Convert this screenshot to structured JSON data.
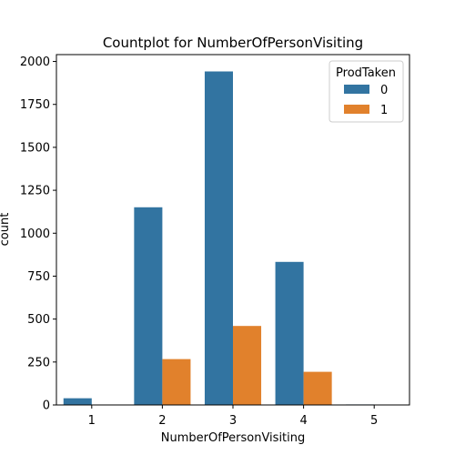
{
  "chart_data": {
    "type": "bar",
    "title": "Countplot for NumberOfPersonVisiting",
    "xlabel": "NumberOfPersonVisiting",
    "ylabel": "count",
    "categories": [
      "1",
      "2",
      "3",
      "4",
      "5"
    ],
    "ylim": [
      0,
      2040
    ],
    "yticks": [
      0,
      250,
      500,
      750,
      1000,
      1250,
      1500,
      1750,
      2000
    ],
    "legend": {
      "title": "ProdTaken",
      "placement": "top-right"
    },
    "series": [
      {
        "name": "0",
        "color": "#3274a1",
        "values": [
          39,
          1151,
          1942,
          833,
          3
        ]
      },
      {
        "name": "1",
        "color": "#e1812c",
        "values": [
          0,
          267,
          460,
          193,
          0
        ]
      }
    ],
    "grid": false
  }
}
